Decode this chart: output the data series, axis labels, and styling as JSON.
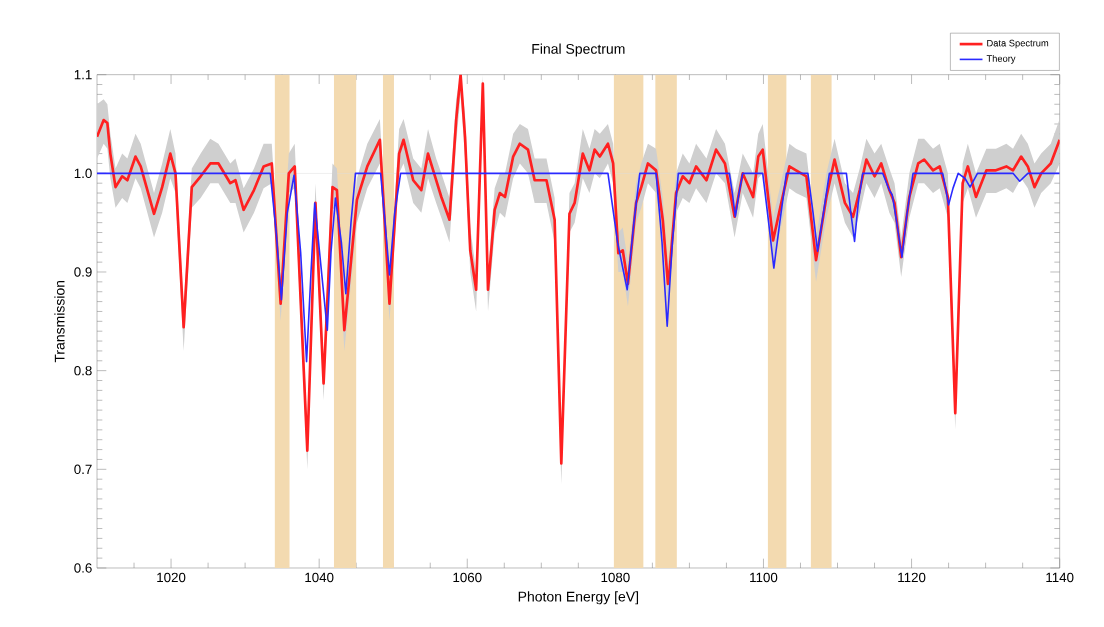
{
  "chart_data": {
    "type": "line",
    "title": "Final Spectrum",
    "xlabel": "Photon Energy [eV]",
    "ylabel": "Transmission",
    "xlim": [
      1010,
      1140
    ],
    "ylim": [
      0.6,
      1.1
    ],
    "xticks": [
      {
        "value": 1015,
        "label": null
      },
      1020,
      {
        "value": 1025,
        "label": null
      },
      {
        "value": 1030,
        "label": null
      },
      {
        "value": 1035,
        "label": null
      },
      1040,
      {
        "value": 1045,
        "label": null
      },
      {
        "value": 1050,
        "label": null
      },
      {
        "value": 1055,
        "label": null
      },
      1060,
      {
        "value": 1065,
        "label": null
      },
      {
        "value": 1070,
        "label": null
      },
      {
        "value": 1075,
        "label": null
      },
      1080,
      {
        "value": 1085,
        "label": null
      },
      {
        "value": 1090,
        "label": null
      },
      {
        "value": 1095,
        "label": null
      },
      1100,
      {
        "value": 1105,
        "label": null
      },
      {
        "value": 1110,
        "label": null
      },
      {
        "value": 1115,
        "label": null
      },
      1120,
      {
        "value": 1125,
        "label": null
      },
      {
        "value": 1130,
        "label": null
      },
      {
        "value": 1135,
        "label": null
      },
      1140
    ],
    "yticks": [
      {
        "value": 0.6,
        "label": "0.6"
      },
      {
        "value": 0.7,
        "label": "0.7"
      },
      {
        "value": 0.8,
        "label": "0.8"
      },
      {
        "value": 0.9,
        "label": "0.9"
      },
      {
        "value": 1.0,
        "label": "1.0"
      },
      {
        "value": 1.1,
        "label": "1.1"
      }
    ],
    "legend": "top right",
    "marker": "none",
    "ref_lines": [
      {
        "axis": "y",
        "value": 1.0,
        "color": "#dddddd"
      }
    ],
    "bands": [
      {
        "axis": "x",
        "from": 1034,
        "to": 1036,
        "color": "#f3dab0"
      },
      {
        "axis": "x",
        "from": 1042,
        "to": 1045,
        "color": "#f3dab0"
      },
      {
        "axis": "x",
        "from": 1048.6,
        "to": 1050.1,
        "color": "#f3dab0"
      },
      {
        "axis": "x",
        "from": 1079.8,
        "to": 1083.8,
        "color": "#f3dab0"
      },
      {
        "axis": "x",
        "from": 1085.4,
        "to": 1088.3,
        "color": "#f3dab0"
      },
      {
        "axis": "x",
        "from": 1100.6,
        "to": 1103.1,
        "color": "#f3dab0"
      },
      {
        "axis": "x",
        "from": 1106.4,
        "to": 1109.2,
        "color": "#f3dab0"
      }
    ],
    "series": [
      {
        "name": "Data Spectrum",
        "type": "line",
        "color": "#ff2020",
        "x": [
          1010,
          1010.9,
          1011.4,
          1011.8,
          1012.5,
          1013.4,
          1014.1,
          1015.2,
          1015.9,
          1017.7,
          1018.8,
          1019.9,
          1020.6,
          1021.7,
          1022.8,
          1024.0,
          1025.3,
          1026.4,
          1028.0,
          1028.7,
          1029.8,
          1031.2,
          1032.5,
          1033.6,
          1034.8,
          1035.9,
          1036.7,
          1038.4,
          1039.5,
          1040.6,
          1041.8,
          1042.4,
          1043.4,
          1045.1,
          1046.5,
          1048.2,
          1049.5,
          1050.8,
          1051.4,
          1052.7,
          1053.8,
          1054.7,
          1055.8,
          1056.5,
          1057.6,
          1058.5,
          1059.1,
          1059.7,
          1060.4,
          1061.2,
          1062.1,
          1062.8,
          1063.7,
          1064.4,
          1065.1,
          1066.2,
          1067.1,
          1068.2,
          1069.1,
          1070.7,
          1071.8,
          1072.7,
          1073.8,
          1074.5,
          1075.6,
          1076.5,
          1077.2,
          1077.9,
          1079.0,
          1079.7,
          1080.4,
          1081.0,
          1081.7,
          1082.8,
          1083.5,
          1084.4,
          1085.5,
          1086.4,
          1087.1,
          1087.3,
          1088.2,
          1089.1,
          1090.0,
          1090.9,
          1092.3,
          1093.6,
          1094.8,
          1096.1,
          1097.2,
          1098.6,
          1099.3,
          1099.9,
          1101.3,
          1102.2,
          1103.5,
          1104.4,
          1105.8,
          1107.1,
          1108.5,
          1109.6,
          1111.0,
          1112.1,
          1113.0,
          1113.9,
          1115.0,
          1115.9,
          1117.0,
          1117.7,
          1118.6,
          1119.7,
          1120.9,
          1121.7,
          1122.9,
          1123.8,
          1124.9,
          1125.9,
          1126.9,
          1127.6,
          1128.7,
          1130.1,
          1131.4,
          1132.8,
          1133.7,
          1134.8,
          1135.7,
          1136.6,
          1137.5,
          1138.8,
          1140.0
        ],
        "values": [
          1.037,
          1.054,
          1.051,
          1.02,
          0.986,
          0.997,
          0.993,
          1.017,
          1.007,
          0.959,
          0.986,
          1.02,
          1.0,
          0.844,
          0.986,
          0.997,
          1.01,
          1.01,
          0.99,
          0.993,
          0.963,
          0.983,
          1.007,
          1.01,
          0.868,
          1.0,
          1.007,
          0.719,
          0.97,
          0.787,
          0.986,
          0.983,
          0.841,
          0.973,
          1.007,
          1.034,
          0.868,
          1.02,
          1.034,
          0.993,
          0.983,
          1.02,
          0.993,
          0.976,
          0.953,
          1.054,
          1.1,
          1.037,
          0.922,
          0.882,
          1.091,
          0.882,
          0.963,
          0.98,
          0.976,
          1.017,
          1.03,
          1.024,
          0.993,
          0.993,
          0.953,
          0.706,
          0.959,
          0.97,
          1.02,
          1.003,
          1.024,
          1.017,
          1.03,
          1.01,
          0.919,
          0.922,
          0.888,
          0.97,
          0.986,
          1.01,
          1.003,
          0.953,
          0.888,
          0.899,
          0.98,
          0.997,
          0.99,
          1.007,
          0.993,
          1.024,
          1.01,
          0.956,
          1.0,
          0.976,
          1.017,
          1.024,
          0.932,
          0.963,
          1.007,
          1.003,
          0.997,
          0.912,
          0.976,
          1.014,
          0.97,
          0.956,
          0.983,
          1.014,
          0.997,
          1.01,
          0.983,
          0.97,
          0.915,
          0.976,
          1.01,
          1.014,
          1.003,
          1.007,
          0.976,
          0.757,
          0.99,
          1.007,
          0.976,
          1.003,
          1.003,
          1.007,
          1.003,
          1.017,
          1.007,
          0.986,
          1.0,
          1.01,
          1.034
        ],
        "lower": [
          1.015,
          1.03,
          1.025,
          0.995,
          0.965,
          0.975,
          0.97,
          0.995,
          0.985,
          0.935,
          0.96,
          0.995,
          0.98,
          0.82,
          0.965,
          0.975,
          0.99,
          0.99,
          0.97,
          0.97,
          0.94,
          0.96,
          0.985,
          0.99,
          0.85,
          0.98,
          0.985,
          0.7,
          0.95,
          0.77,
          0.965,
          0.96,
          0.82,
          0.95,
          0.985,
          1.01,
          0.85,
          1.0,
          1.01,
          0.97,
          0.96,
          0.995,
          0.97,
          0.955,
          0.93,
          1.03,
          1.08,
          1.015,
          0.9,
          0.86,
          1.07,
          0.86,
          0.94,
          0.96,
          0.955,
          0.995,
          1.01,
          1.0,
          0.97,
          0.97,
          0.93,
          0.685,
          0.94,
          0.95,
          0.995,
          0.98,
          1.0,
          0.995,
          1.01,
          0.99,
          0.9,
          0.9,
          0.865,
          0.95,
          0.965,
          0.99,
          0.98,
          0.93,
          0.865,
          0.88,
          0.96,
          0.975,
          0.97,
          0.985,
          0.97,
          1.0,
          0.99,
          0.935,
          0.98,
          0.955,
          0.995,
          1.0,
          0.91,
          0.94,
          0.985,
          0.98,
          0.975,
          0.89,
          0.955,
          0.99,
          0.95,
          0.935,
          0.96,
          0.99,
          0.975,
          0.99,
          0.96,
          0.95,
          0.895,
          0.955,
          0.99,
          0.99,
          0.98,
          0.985,
          0.955,
          0.74,
          0.97,
          0.985,
          0.955,
          0.98,
          0.98,
          0.985,
          0.98,
          0.995,
          0.985,
          0.965,
          0.98,
          0.99,
          1.01
        ],
        "upper": [
          1.07,
          1.075,
          1.07,
          1.04,
          1.005,
          1.02,
          1.015,
          1.04,
          1.03,
          0.98,
          1.01,
          1.045,
          1.02,
          0.865,
          1.005,
          1.02,
          1.035,
          1.03,
          1.01,
          1.015,
          0.985,
          1.005,
          1.03,
          1.03,
          0.89,
          1.02,
          1.03,
          0.74,
          0.99,
          0.81,
          1.01,
          1.005,
          0.86,
          0.995,
          1.03,
          1.055,
          0.89,
          1.045,
          1.055,
          1.015,
          1.005,
          1.045,
          1.015,
          1.0,
          0.975,
          1.075,
          1.1,
          1.06,
          0.945,
          0.9,
          1.1,
          0.9,
          0.985,
          1.0,
          1.0,
          1.04,
          1.05,
          1.045,
          1.015,
          1.015,
          0.975,
          0.725,
          0.98,
          0.99,
          1.045,
          1.025,
          1.045,
          1.04,
          1.05,
          1.03,
          0.94,
          0.945,
          0.91,
          0.99,
          1.01,
          1.03,
          1.025,
          0.975,
          0.91,
          0.92,
          1.0,
          1.02,
          1.01,
          1.03,
          1.015,
          1.045,
          1.03,
          0.98,
          1.02,
          1.0,
          1.04,
          1.05,
          0.955,
          0.985,
          1.03,
          1.025,
          1.02,
          0.935,
          1.0,
          1.035,
          0.99,
          0.98,
          1.005,
          1.035,
          1.02,
          1.03,
          1.005,
          0.99,
          0.935,
          1.0,
          1.035,
          1.035,
          1.025,
          1.03,
          1.0,
          0.78,
          1.01,
          1.03,
          1.0,
          1.025,
          1.025,
          1.03,
          1.025,
          1.04,
          1.03,
          1.01,
          1.02,
          1.03,
          1.055
        ]
      },
      {
        "name": "Theory",
        "type": "line",
        "color": "#2a2aff",
        "x": [
          1010,
          1033.4,
          1034.2,
          1034.9,
          1035.7,
          1036.6,
          1037.5,
          1038.3,
          1038.9,
          1039.4,
          1040.2,
          1041.1,
          1041.6,
          1042.2,
          1043.0,
          1043.6,
          1044.3,
          1044.9,
          1048.3,
          1048.9,
          1049.5,
          1050.2,
          1051.0,
          1079.0,
          1080.3,
          1081.6,
          1082.5,
          1083.3,
          1085.5,
          1086.3,
          1087.0,
          1087.7,
          1088.5,
          1095.4,
          1095.8,
          1096.2,
          1096.7,
          1097.2,
          1099.9,
          1100.7,
          1101.4,
          1102.2,
          1103.1,
          1106.0,
          1106.7,
          1107.3,
          1108.1,
          1108.9,
          1111.2,
          1111.8,
          1112.3,
          1112.8,
          1113.4,
          1116.1,
          1117.0,
          1117.4,
          1118.0,
          1118.7,
          1119.4,
          1120.2,
          1124.2,
          1124.6,
          1125.0,
          1125.6,
          1126.3,
          1127.2,
          1127.9,
          1128.4,
          1128.9,
          1133.7,
          1134.6,
          1135.7,
          1140
        ],
        "values": [
          1.0,
          1.0,
          0.94,
          0.872,
          0.96,
          0.998,
          0.92,
          0.809,
          0.9,
          0.97,
          0.909,
          0.841,
          0.92,
          0.975,
          0.93,
          0.878,
          0.95,
          1.0,
          1.0,
          0.95,
          0.897,
          0.96,
          1.0,
          1.0,
          0.93,
          0.882,
          0.95,
          1.0,
          1.0,
          0.93,
          0.845,
          0.93,
          1.0,
          1.0,
          0.98,
          0.956,
          0.98,
          1.0,
          1.0,
          0.95,
          0.904,
          0.95,
          1.0,
          1.0,
          0.96,
          0.921,
          0.96,
          1.0,
          1.0,
          0.96,
          0.931,
          0.97,
          1.0,
          1.0,
          0.983,
          0.978,
          0.95,
          0.915,
          0.96,
          1.0,
          1.0,
          0.985,
          0.968,
          0.985,
          1.0,
          0.995,
          0.986,
          0.993,
          1.0,
          1.0,
          0.992,
          1.0,
          1.0
        ]
      }
    ]
  }
}
